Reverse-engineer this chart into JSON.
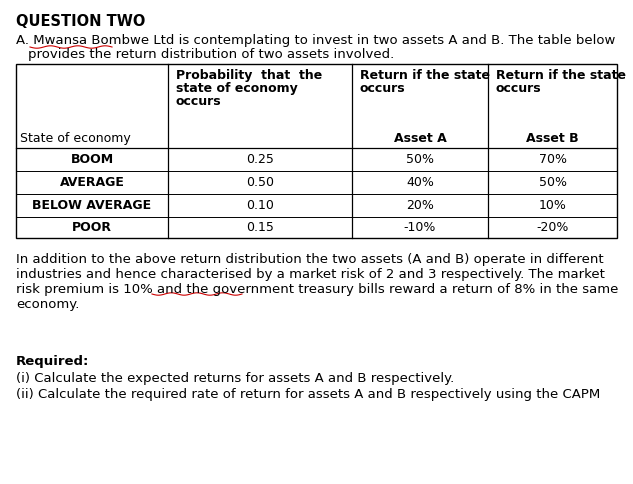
{
  "title": "QUESTION TWO",
  "intro_line1": "A. Mwansa Bombwe Ltd is contemplating to invest in two assets A and B. The table below",
  "intro_line2": "provides the return distribution of two assets involved.",
  "states": [
    "BOOM",
    "AVERAGE",
    "BELOW AVERAGE",
    "POOR"
  ],
  "probabilities": [
    "0.25",
    "0.50",
    "0.10",
    "0.15"
  ],
  "asset_a": [
    "50%",
    "40%",
    "20%",
    "-10%"
  ],
  "asset_b": [
    "70%",
    "50%",
    "10%",
    "-20%"
  ],
  "para_line1": "In addition to the above return distribution the two assets (A and B) operate in different",
  "para_line2": "industries and hence characterised by a market risk of 2 and 3 respectively. The market",
  "para_line3": "risk premium is 10% and the government treasury bills reward a return of 8% in the same",
  "para_line4": "economy.",
  "required_label": "Required:",
  "req_i": "(i) Calculate the expected returns for assets A and B respectively.",
  "req_ii": "(ii) Calculate the required rate of return for assets A and B respectively using the CAPM",
  "bg_color": "#ffffff",
  "text_color": "#000000",
  "font_size": 9.5,
  "title_font_size": 10.5
}
